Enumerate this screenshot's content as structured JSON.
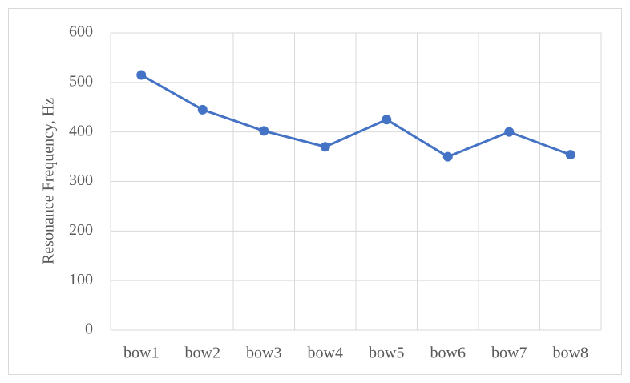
{
  "chart_data": {
    "type": "line",
    "y_label": "Resonance Frequency, Hz",
    "categories": [
      "bow1",
      "bow2",
      "bow3",
      "bow4",
      "bow5",
      "bow6",
      "bow7",
      "bow8"
    ],
    "values": [
      515,
      445,
      402,
      370,
      425,
      350,
      400,
      354
    ],
    "color": "#4472c4",
    "ylim": [
      0,
      600
    ],
    "yticks": [
      0,
      100,
      200,
      300,
      400,
      500,
      600
    ],
    "grid": true
  }
}
